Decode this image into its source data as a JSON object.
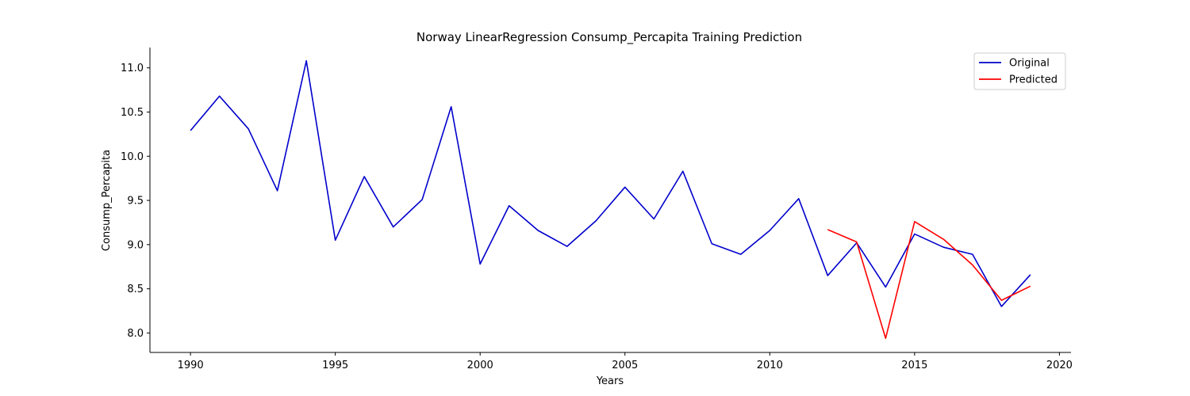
{
  "chart_data": {
    "type": "line",
    "title": "Norway LinearRegression Consump_Percapita Training Prediction",
    "xlabel": "Years",
    "ylabel": "Consump_Percapita",
    "xlim": [
      1988.6,
      2020.4
    ],
    "ylim": [
      7.78,
      11.23
    ],
    "xticks": [
      1990,
      1995,
      2000,
      2005,
      2010,
      2015,
      2020
    ],
    "yticks": [
      8.0,
      8.5,
      9.0,
      9.5,
      10.0,
      10.5,
      11.0
    ],
    "ytick_labels": [
      "8.0",
      "8.5",
      "9.0",
      "9.5",
      "10.0",
      "10.5",
      "11.0"
    ],
    "grid": false,
    "legend_position": "top-right",
    "series": [
      {
        "name": "Original",
        "color": "#0000cc",
        "x": [
          1990,
          1991,
          1992,
          1993,
          1994,
          1995,
          1996,
          1997,
          1998,
          1999,
          2000,
          2001,
          2002,
          2003,
          2004,
          2005,
          2006,
          2007,
          2008,
          2009,
          2010,
          2011,
          2012,
          2013,
          2014,
          2015,
          2016,
          2017,
          2018,
          2019
        ],
        "y": [
          10.29,
          10.68,
          10.31,
          9.61,
          11.08,
          9.05,
          9.77,
          9.2,
          9.51,
          10.56,
          8.78,
          9.44,
          9.16,
          8.98,
          9.27,
          9.65,
          9.29,
          9.83,
          9.01,
          8.89,
          9.16,
          9.52,
          8.65,
          9.02,
          8.52,
          9.12,
          8.97,
          8.89,
          8.3,
          8.66
        ]
      },
      {
        "name": "Predicted",
        "color": "#ff0000",
        "x": [
          2012,
          2013,
          2014,
          2015,
          2016,
          2017,
          2018,
          2019
        ],
        "y": [
          9.17,
          9.03,
          7.94,
          9.26,
          9.06,
          8.77,
          8.37,
          8.53
        ]
      }
    ]
  }
}
